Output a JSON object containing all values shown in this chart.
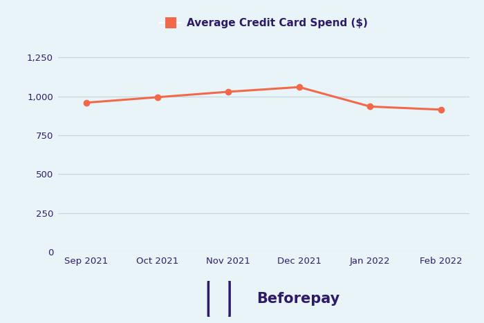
{
  "categories": [
    "Sep 2021",
    "Oct 2021",
    "Nov 2021",
    "Dec 2021",
    "Jan 2022",
    "Feb 2022"
  ],
  "values": [
    960,
    995,
    1030,
    1060,
    935,
    915
  ],
  "line_color": "#F26849",
  "marker_color": "#F26849",
  "background_color": "#E8F4F8",
  "grid_color": "#C5D5DC",
  "title_color": "#2D1B69",
  "tick_color": "#2D1B69",
  "ylim": [
    0,
    1350
  ],
  "yticks": [
    0,
    250,
    500,
    750,
    1000,
    1250
  ],
  "legend_label": "Average Credit Card Spend ($)",
  "legend_marker_color": "#F26849",
  "marker_size": 6,
  "line_width": 2.2,
  "brand_text": "Beforepay",
  "brand_color": "#2D1B69"
}
